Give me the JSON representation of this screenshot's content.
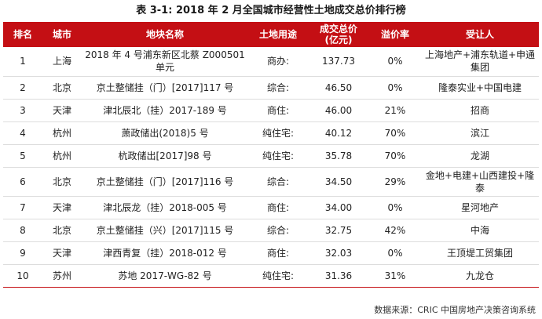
{
  "title": "表 3-1:    2018 年 2 月全国城市经营性土地成交总价排行榜",
  "headers": [
    "排名",
    "城市",
    "地块名称",
    "土地用途",
    "成交总价\n(亿元)",
    "溢价率",
    "受让人"
  ],
  "rows": [
    [
      "1",
      "上海",
      "2018 年 4 号浦东新区北蔡 Z000501 单元",
      "商办:",
      "137.73",
      "0%",
      "上海地产+浦东轨道+申通集团"
    ],
    [
      "2",
      "北京",
      "京土整储挂（门）[2017]117 号",
      "综合:",
      "46.50",
      "0%",
      "隆泰实业+中国电建"
    ],
    [
      "3",
      "天津",
      "津北辰北（挂）2017-189 号",
      "商住:",
      "46.00",
      "21%",
      "招商"
    ],
    [
      "4",
      "杭州",
      "萧政储出(2018)5 号",
      "纯住宅:",
      "40.12",
      "70%",
      "滨江"
    ],
    [
      "5",
      "杭州",
      "杭政储出[2017]98 号",
      "纯住宅:",
      "35.78",
      "70%",
      "龙湖"
    ],
    [
      "6",
      "北京",
      "京土整储挂（门）[2017]116 号",
      "综合:",
      "34.50",
      "29%",
      "金地+电建+山西建投+隆泰"
    ],
    [
      "7",
      "天津",
      "津北辰龙（挂）2018-005 号",
      "商住:",
      "34.00",
      "0%",
      "星河地产"
    ],
    [
      "8",
      "北京",
      "京土整储挂（兴）[2017]115 号",
      "综合:",
      "32.75",
      "42%",
      "中海"
    ],
    [
      "9",
      "天津",
      "津西青复（挂）2018-012 号",
      "商住:",
      "32.03",
      "0%",
      "王顶堤工贸集团"
    ],
    [
      "10",
      "苏州",
      "苏地 2017-WG-82 号",
      "纯住宅:",
      "31.36",
      "31%",
      "九龙仓"
    ]
  ],
  "source": "数据来源：CRIC 中国房地产决策咨询系统",
  "colors": {
    "header_bg": "#c40f14",
    "header_text": "#ffffff"
  }
}
